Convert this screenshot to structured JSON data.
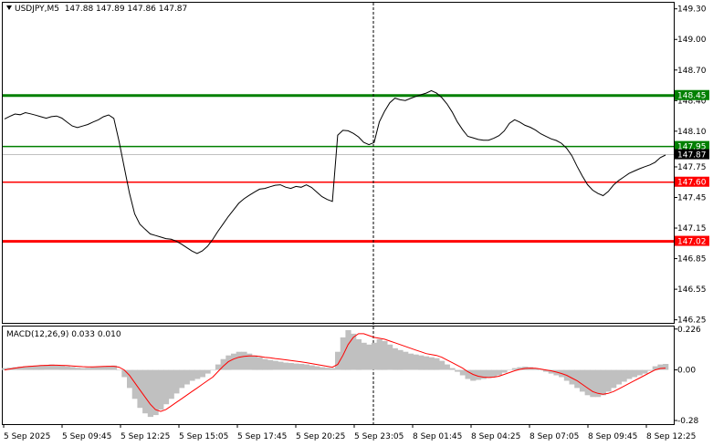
{
  "header": {
    "symbol": "USDJPY,M5",
    "ohlc": "147.88 147.89 147.86 147.87"
  },
  "macd": {
    "label": "MACD(12,26,9) 0.033 0.010",
    "ticks": [
      {
        "label": "0.226",
        "value": 0.226
      },
      {
        "label": "0.00",
        "value": 0.0
      },
      {
        "label": "-0.28",
        "value": -0.28
      }
    ],
    "range": [
      -0.3,
      0.24
    ]
  },
  "price_axis": {
    "ticks": [
      "149.30",
      "149.00",
      "148.70",
      "148.40",
      "148.10",
      "147.75",
      "147.45",
      "147.15",
      "146.85",
      "146.55",
      "146.25"
    ],
    "range": [
      146.22,
      149.36
    ]
  },
  "levels": [
    {
      "label": "148.45",
      "value": 148.45,
      "color": "#008000",
      "weight": "thick"
    },
    {
      "label": "147.95",
      "value": 147.95,
      "color": "#008000",
      "weight": "thin"
    },
    {
      "label": "147.60",
      "value": 147.6,
      "color": "#ff0000",
      "weight": "thin"
    },
    {
      "label": "147.02",
      "value": 147.02,
      "color": "#ff0000",
      "weight": "thick"
    }
  ],
  "current_price": {
    "label": "147.87",
    "value": 147.87
  },
  "time_axis": [
    "5 Sep 2025",
    "5 Sep 09:45",
    "5 Sep 12:25",
    "5 Sep 15:05",
    "5 Sep 17:45",
    "5 Sep 20:25",
    "5 Sep 23:05",
    "8 Sep 01:45",
    "8 Sep 04:25",
    "8 Sep 07:05",
    "8 Sep 09:45",
    "8 Sep 12:25"
  ],
  "chart_data": {
    "type": "line",
    "price_series": [
      148.22,
      148.24,
      148.26,
      148.25,
      148.27,
      148.26,
      148.25,
      148.24,
      148.23,
      148.25,
      148.26,
      148.24,
      148.2,
      148.16,
      148.14,
      148.15,
      148.16,
      148.18,
      148.2,
      148.23,
      148.25,
      148.22,
      148.0,
      147.75,
      147.5,
      147.3,
      147.2,
      147.15,
      147.1,
      147.08,
      147.06,
      147.04,
      147.03,
      147.01,
      146.98,
      146.95,
      146.92,
      146.9,
      146.93,
      146.98,
      147.05,
      147.13,
      147.2,
      147.27,
      147.33,
      147.39,
      147.43,
      147.46,
      147.49,
      147.52,
      147.53,
      147.55,
      147.57,
      147.58,
      147.56,
      147.55,
      147.57,
      147.56,
      147.58,
      147.55,
      147.5,
      147.45,
      147.42,
      147.4,
      148.05,
      148.1,
      148.1,
      148.08,
      148.05,
      148.0,
      147.98,
      148.0,
      148.2,
      148.3,
      148.38,
      148.42,
      148.4,
      148.39,
      148.41,
      148.43,
      148.45,
      148.47,
      148.5,
      148.48,
      148.44,
      148.38,
      148.3,
      148.2,
      148.12,
      148.05,
      148.03,
      148.01,
      148.0,
      148.0,
      148.02,
      148.05,
      148.1,
      148.18,
      148.22,
      148.2,
      148.17,
      148.15,
      148.12,
      148.08,
      148.05,
      148.02,
      148.0,
      147.97,
      147.92,
      147.85,
      147.75,
      147.66,
      147.58,
      147.53,
      147.5,
      147.48,
      147.52,
      147.58,
      147.62,
      147.65,
      147.68,
      147.7,
      147.72,
      147.74,
      147.76,
      147.79,
      147.84,
      147.87
    ],
    "macd_histogram": [
      0.01,
      0.012,
      0.015,
      0.018,
      0.02,
      0.022,
      0.024,
      0.026,
      0.028,
      0.03,
      0.028,
      0.024,
      0.02,
      0.016,
      0.012,
      0.01,
      0.012,
      0.015,
      0.018,
      0.02,
      0.022,
      0.024,
      0.0,
      -0.04,
      -0.1,
      -0.16,
      -0.21,
      -0.24,
      -0.26,
      -0.25,
      -0.22,
      -0.19,
      -0.16,
      -0.13,
      -0.1,
      -0.08,
      -0.06,
      -0.05,
      -0.04,
      -0.02,
      0.0,
      0.03,
      0.06,
      0.08,
      0.09,
      0.1,
      0.1,
      0.09,
      0.08,
      0.07,
      0.06,
      0.055,
      0.05,
      0.045,
      0.04,
      0.038,
      0.035,
      0.033,
      0.03,
      0.025,
      0.02,
      0.015,
      0.012,
      0.01,
      0.1,
      0.18,
      0.22,
      0.2,
      0.17,
      0.15,
      0.14,
      0.15,
      0.17,
      0.16,
      0.14,
      0.12,
      0.11,
      0.1,
      0.09,
      0.085,
      0.08,
      0.075,
      0.07,
      0.065,
      0.05,
      0.03,
      0.01,
      -0.01,
      -0.03,
      -0.05,
      -0.06,
      -0.055,
      -0.05,
      -0.045,
      -0.04,
      -0.03,
      -0.015,
      0.0,
      0.01,
      0.015,
      0.018,
      0.015,
      0.01,
      0.0,
      -0.01,
      -0.02,
      -0.03,
      -0.04,
      -0.06,
      -0.08,
      -0.1,
      -0.12,
      -0.14,
      -0.15,
      -0.15,
      -0.14,
      -0.12,
      -0.1,
      -0.08,
      -0.065,
      -0.05,
      -0.04,
      -0.03,
      -0.02,
      -0.005,
      0.02,
      0.03,
      0.033
    ],
    "macd_signal": [
      0.0,
      0.005,
      0.01,
      0.014,
      0.018,
      0.02,
      0.022,
      0.024,
      0.025,
      0.026,
      0.026,
      0.025,
      0.024,
      0.022,
      0.02,
      0.018,
      0.017,
      0.017,
      0.018,
      0.019,
      0.02,
      0.02,
      0.015,
      0.0,
      -0.03,
      -0.07,
      -0.11,
      -0.15,
      -0.19,
      -0.22,
      -0.23,
      -0.22,
      -0.2,
      -0.18,
      -0.16,
      -0.14,
      -0.12,
      -0.1,
      -0.08,
      -0.06,
      -0.04,
      -0.01,
      0.02,
      0.045,
      0.06,
      0.07,
      0.075,
      0.077,
      0.077,
      0.075,
      0.07,
      0.067,
      0.063,
      0.06,
      0.056,
      0.052,
      0.048,
      0.044,
      0.04,
      0.035,
      0.03,
      0.025,
      0.02,
      0.015,
      0.03,
      0.08,
      0.14,
      0.18,
      0.2,
      0.2,
      0.19,
      0.18,
      0.175,
      0.17,
      0.16,
      0.15,
      0.14,
      0.13,
      0.12,
      0.11,
      0.1,
      0.09,
      0.085,
      0.08,
      0.07,
      0.055,
      0.04,
      0.025,
      0.01,
      -0.01,
      -0.025,
      -0.035,
      -0.04,
      -0.042,
      -0.04,
      -0.035,
      -0.025,
      -0.015,
      -0.005,
      0.003,
      0.008,
      0.01,
      0.009,
      0.005,
      0.0,
      -0.005,
      -0.012,
      -0.02,
      -0.03,
      -0.045,
      -0.06,
      -0.08,
      -0.1,
      -0.12,
      -0.13,
      -0.135,
      -0.13,
      -0.12,
      -0.105,
      -0.09,
      -0.075,
      -0.06,
      -0.045,
      -0.03,
      -0.015,
      0.0,
      0.008,
      0.01
    ]
  }
}
